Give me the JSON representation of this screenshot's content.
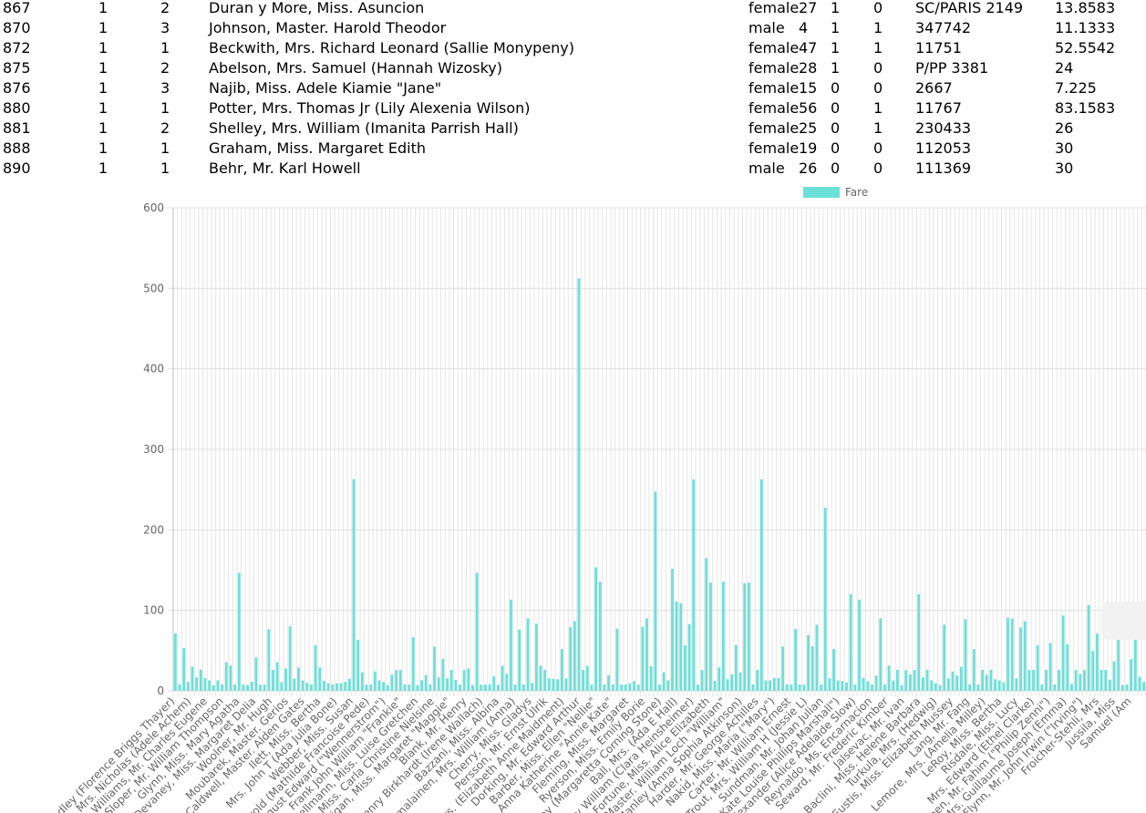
{
  "table": {
    "rows": [
      {
        "id": "867",
        "survived": "1",
        "pclass": "2",
        "name": "Duran y More, Miss. Asuncion",
        "sex": "female",
        "age": "27",
        "sibsp": "1",
        "parch": "0",
        "ticket": "SC/PARIS 2149",
        "fare": "13.8583"
      },
      {
        "id": "870",
        "survived": "1",
        "pclass": "3",
        "name": "Johnson, Master. Harold Theodor",
        "sex": "male",
        "age": "4",
        "sibsp": "1",
        "parch": "1",
        "ticket": "347742",
        "fare": "11.1333"
      },
      {
        "id": "872",
        "survived": "1",
        "pclass": "1",
        "name": "Beckwith, Mrs. Richard Leonard (Sallie Monypeny)",
        "sex": "female",
        "age": "47",
        "sibsp": "1",
        "parch": "1",
        "ticket": "11751",
        "fare": "52.5542"
      },
      {
        "id": "875",
        "survived": "1",
        "pclass": "2",
        "name": "Abelson, Mrs. Samuel (Hannah Wizosky)",
        "sex": "female",
        "age": "28",
        "sibsp": "1",
        "parch": "0",
        "ticket": "P/PP 3381",
        "fare": "24"
      },
      {
        "id": "876",
        "survived": "1",
        "pclass": "3",
        "name": "Najib, Miss. Adele Kiamie \"Jane\"",
        "sex": "female",
        "age": "15",
        "sibsp": "0",
        "parch": "0",
        "ticket": "2667",
        "fare": "7.225"
      },
      {
        "id": "880",
        "survived": "1",
        "pclass": "1",
        "name": "Potter, Mrs. Thomas Jr (Lily Alexenia Wilson)",
        "sex": "female",
        "age": "56",
        "sibsp": "0",
        "parch": "1",
        "ticket": "11767",
        "fare": "83.1583"
      },
      {
        "id": "881",
        "survived": "1",
        "pclass": "2",
        "name": "Shelley, Mrs. William (Imanita Parrish Hall)",
        "sex": "female",
        "age": "25",
        "sibsp": "0",
        "parch": "1",
        "ticket": "230433",
        "fare": "26"
      },
      {
        "id": "888",
        "survived": "1",
        "pclass": "1",
        "name": "Graham, Miss. Margaret Edith",
        "sex": "female",
        "age": "19",
        "sibsp": "0",
        "parch": "0",
        "ticket": "112053",
        "fare": "30"
      },
      {
        "id": "890",
        "survived": "1",
        "pclass": "1",
        "name": "Behr, Mr. Karl Howell",
        "sex": "male",
        "age": "26",
        "sibsp": "0",
        "parch": "0",
        "ticket": "111369",
        "fare": "30"
      }
    ]
  },
  "chart_data": {
    "type": "bar",
    "series": [
      {
        "name": "Fare",
        "color": "#6be0d8"
      }
    ],
    "ylim": [
      0,
      600
    ],
    "yticks": [
      0,
      100,
      200,
      300,
      400,
      500,
      600
    ],
    "grid": true,
    "legend_position": "top",
    "xtick_labels": [
      "Bradley (Florence Briggs Thayer)",
      "Mrs. Nicholas (Adele Achem)",
      "Williams, Mr. Charles Eugene",
      "Sloper, Mr. William Thompson",
      "Glynn, Miss. Mary Agatha",
      "Devaney, Miss. Margaret Delia",
      "Woolner, Mr. Hugh",
      "Moubarek, Master. Gerios",
      "Caldwell, Master. Alden Gates",
      "Ilett, Miss. Bertha",
      "Mrs. John T (Ada Julia Bone)",
      "Webber, Miss. Susan",
      "Harold (Mathilde Francoise Pede)",
      "August Edward (\"Wennerstrom\")",
      "Frank John William \"Frankie\"",
      "Hellmann, Miss. Luise Gretchen",
      "Miss. Carla Christine Nielsine",
      "Madigan, Miss. Margaret \"Maggie\"",
      "Blank, Mr. Henry",
      "Henry Birkhardt (Irene Wallach)",
      "Bazzani, Miss. Albina",
      "Hamalainen, Mrs. William (Anna)",
      "Cherry, Miss. Gladys",
      "Persson, Mr. Ernst Ulrik",
      "Mrs. (Elizabeth Anne Maidment)",
      "Dorking, Mr. Edward Arthur",
      "Barber, Miss. Ellen \"Nellie\"",
      "Anna Katherine \"Annie Kate\"",
      "Fleming, Miss. Margaret",
      "Ryerson, Miss. Emily Borie",
      "Ley (Margaretta Corning Stone)",
      "Ball, Mrs. (Ada E Hall)",
      "Harry William (Clara Heinsheimer)",
      "Fortune, Miss. Alice Elizabeth",
      "Master. William Loch \"William\"",
      "Manley (Anna Sophia Atkinson)",
      "Harder, Mr. George Achilles",
      "Nakid, Miss. Maria (\"Mary\")",
      "Carter, Mr. William Ernest",
      "Trout, Mrs. William H (Jessie L)",
      "Sundman, Mr. Johan Julian",
      "Kate Louise Phillips Marshall\")",
      "Alexander (Alice Adelaide Slow)",
      "Reynaldo, Ms. Encarnacion",
      "Seward, Mr. Frederic Kimber",
      "Jalsevac, Mr. Ivan",
      "Baclini, Miss. Helene Barbara",
      "Turkula, Mrs. (Hedwig)",
      "Eustis, Miss. Elizabeth Mussey",
      "Lang, Mr. Fang",
      "Lemore, Mrs. (Amelia Milley)",
      "LeRoy, Miss. Bertha",
      "Risdale, Miss. Lucy",
      "Mrs. Edward (Ethel Clarke)",
      "Yaseen, Mr. Fahim (\"Philip Zenni\")",
      "Mrs. Guillaume Joseph (Emma)",
      "Flynn, Mr. John Irwin (\"Irving\")",
      "Froicher-Stehli, Mrs",
      "Jussila, Miss",
      "Samuel (Am"
    ],
    "values": [
      71.28,
      7.92,
      53.1,
      11.13,
      30.07,
      16.7,
      26.55,
      16.0,
      13.0,
      7.23,
      13.0,
      7.9,
      35.5,
      31.39,
      7.9,
      146.52,
      7.75,
      7.23,
      11.24,
      41.58,
      7.75,
      7.75,
      76.73,
      26.0,
      35.5,
      10.5,
      27.72,
      80.0,
      15.25,
      29.13,
      13.0,
      10.0,
      8.05,
      56.5,
      29.0,
      12.47,
      9.5,
      7.79,
      9.35,
      9.5,
      11.13,
      15.0,
      263.0,
      63.36,
      23.0,
      7.75,
      7.75,
      24.15,
      13.0,
      11.13,
      7.23,
      20.21,
      26.0,
      26.0,
      7.93,
      7.75,
      66.6,
      7.23,
      13.42,
      19.5,
      8.05,
      55.0,
      16.7,
      39.69,
      15.5,
      26.0,
      13.5,
      7.9,
      26.0,
      27.9,
      7.23,
      146.52,
      7.75,
      7.75,
      7.9,
      18.0,
      7.55,
      31.0,
      21.07,
      113.28,
      7.75,
      76.29,
      8.05,
      90.0,
      9.83,
      83.48,
      31.39,
      26.25,
      15.5,
      15.0,
      14.45,
      52.0,
      15.5,
      79.2,
      86.5,
      512.33,
      26.0,
      31.0,
      7.65,
      153.46,
      135.63,
      8.05,
      19.26,
      7.9,
      77.29,
      7.75,
      8.05,
      9.5,
      12.0,
      7.8,
      79.65,
      90.0,
      30.5,
      247.52,
      7.75,
      23.25,
      13.0,
      151.55,
      110.88,
      108.9,
      56.5,
      83.16,
      262.38,
      7.75,
      26.0,
      164.87,
      134.5,
      12.47,
      29.13,
      135.63,
      14.45,
      20.53,
      57.0,
      23.0,
      133.65,
      134.5,
      8.05,
      26.0,
      263.0,
      13.0,
      13.0,
      16.1,
      16.0,
      55.0,
      8.05,
      7.75,
      76.73,
      7.73,
      7.75,
      69.3,
      55.44,
      82.17,
      7.75,
      227.53,
      15.74,
      52.0,
      13.0,
      12.29,
      10.5,
      120.0,
      7.74,
      113.28,
      16.1,
      12.0,
      7.78,
      18.75,
      90.0,
      7.75,
      31.39,
      12.88,
      26.0,
      7.13,
      26.0,
      20.53,
      26.0,
      120.0,
      16.7,
      26.0,
      13.0,
      9.5,
      7.23,
      82.27,
      15.5,
      24.15,
      19.26,
      30.0,
      89.1,
      7.9,
      51.86,
      7.9,
      26.0,
      19.97,
      26.0,
      14.46,
      13.0,
      10.5,
      91.08,
      90.0,
      15.5,
      78.85,
      86.5,
      26.0,
      26.0,
      56.5,
      7.75,
      26.25,
      59.4,
      8.05,
      26.0,
      93.5,
      57.98,
      8.66,
      26.0,
      21.08,
      26.0,
      106.43,
      49.5,
      71.0,
      26.0,
      26.0,
      13.86,
      36.75,
      110.88,
      7.23,
      7.78,
      39.4,
      80.0,
      17.4,
      11.13
    ]
  }
}
